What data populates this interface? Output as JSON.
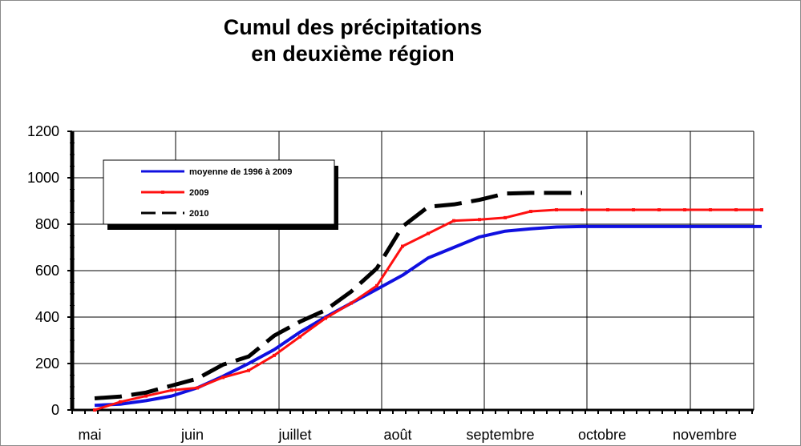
{
  "chart_data": {
    "type": "line",
    "title_lines": [
      "Cumul des précipitations",
      "en deuxième région"
    ],
    "xlabel": "",
    "ylabel": "",
    "x_tick_labels": [
      "mai",
      "juin",
      "juillet",
      "août",
      "septembre",
      "octobre",
      "novembre"
    ],
    "x_unit": "month index (0 = mai, 1 = juin, ... 6 = novembre)",
    "xlim": [
      0,
      6.5
    ],
    "ylim": [
      0,
      1200
    ],
    "y_ticks": [
      0,
      200,
      400,
      600,
      800,
      1000,
      1200
    ],
    "grid": true,
    "legend_position": "top-left",
    "series": [
      {
        "name": "moyenne de 1996 à 2009",
        "color": "#1010e0",
        "style": "solid",
        "x": [
          0,
          0.25,
          0.5,
          0.75,
          1.0,
          1.25,
          1.5,
          1.75,
          2.0,
          2.25,
          2.5,
          2.75,
          3.0,
          3.25,
          3.5,
          3.75,
          4.0,
          4.25,
          4.5,
          4.75,
          5.0,
          5.25,
          5.5,
          5.75,
          6.0,
          6.25,
          6.5
        ],
        "y": [
          20,
          25,
          40,
          60,
          95,
          145,
          200,
          260,
          335,
          400,
          460,
          520,
          580,
          655,
          700,
          745,
          770,
          780,
          788,
          790,
          790,
          790,
          790,
          790,
          790,
          790,
          790
        ]
      },
      {
        "name": "2009",
        "color": "#ff1010",
        "style": "solid-markers",
        "x": [
          0,
          0.25,
          0.5,
          0.75,
          1.0,
          1.25,
          1.5,
          1.75,
          2.0,
          2.25,
          2.5,
          2.75,
          3.0,
          3.25,
          3.5,
          3.75,
          4.0,
          4.25,
          4.5,
          4.75,
          5.0,
          5.25,
          5.5,
          5.75,
          6.0,
          6.25,
          6.5
        ],
        "y": [
          0,
          35,
          60,
          85,
          95,
          140,
          170,
          235,
          315,
          395,
          460,
          535,
          705,
          760,
          815,
          820,
          828,
          855,
          862,
          862,
          862,
          862,
          862,
          862,
          862,
          862,
          862
        ]
      },
      {
        "name": "2010",
        "color": "#000000",
        "style": "dashed",
        "x": [
          0,
          0.25,
          0.5,
          0.75,
          1.0,
          1.25,
          1.5,
          1.75,
          2.0,
          2.25,
          2.5,
          2.75,
          3.0,
          3.25,
          3.5,
          3.75,
          4.0,
          4.25,
          4.5,
          4.75
        ],
        "y": [
          50,
          58,
          75,
          105,
          135,
          195,
          230,
          320,
          380,
          430,
          510,
          610,
          790,
          875,
          885,
          905,
          932,
          935,
          935,
          935
        ]
      }
    ]
  }
}
